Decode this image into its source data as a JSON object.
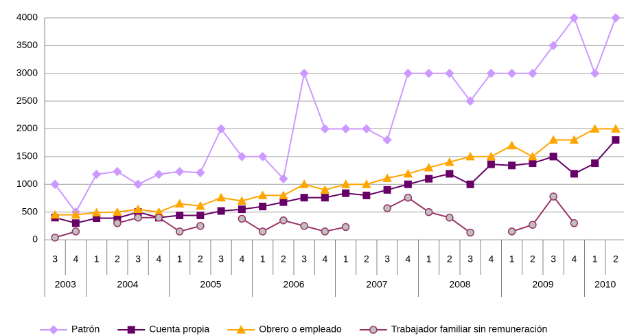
{
  "chart_data": {
    "type": "line",
    "categories": [
      "3",
      "4",
      "1",
      "2",
      "3",
      "4",
      "1",
      "2",
      "3",
      "4",
      "1",
      "2",
      "3",
      "4",
      "1",
      "2",
      "3",
      "4",
      "1",
      "2",
      "3",
      "4",
      "1",
      "2",
      "3",
      "4",
      "1",
      "2"
    ],
    "years": [
      {
        "label": "2003",
        "count": 2
      },
      {
        "label": "2004",
        "count": 4
      },
      {
        "label": "2005",
        "count": 4
      },
      {
        "label": "2006",
        "count": 4
      },
      {
        "label": "2007",
        "count": 4
      },
      {
        "label": "2008",
        "count": 4
      },
      {
        "label": "2009",
        "count": 4
      },
      {
        "label": "2010",
        "count": 2
      }
    ],
    "ylim": [
      0,
      4000
    ],
    "yticks": [
      0,
      500,
      1000,
      1500,
      2000,
      2500,
      3000,
      3500,
      4000
    ],
    "grid": true,
    "legend": "bottom",
    "series": [
      {
        "name": "Patrón",
        "color": "#cc99ff",
        "marker": "diamond",
        "values": [
          1000,
          500,
          1180,
          1230,
          1000,
          1180,
          1230,
          1210,
          2000,
          1500,
          1500,
          1100,
          3000,
          2000,
          2000,
          2000,
          1800,
          3000,
          3000,
          3000,
          2500,
          3000,
          3000,
          3000,
          3500,
          4000,
          3000,
          4000
        ]
      },
      {
        "name": "Cuenta propia",
        "color": "#660066",
        "marker": "square",
        "values": [
          400,
          300,
          390,
          390,
          500,
          400,
          440,
          440,
          520,
          550,
          600,
          680,
          760,
          760,
          840,
          800,
          900,
          1000,
          1100,
          1190,
          1000,
          1360,
          1340,
          1380,
          1500,
          1190,
          1380,
          1800
        ]
      },
      {
        "name": "Obrero o empleado",
        "color": "#ffa500",
        "marker": "triangle",
        "values": [
          450,
          450,
          490,
          500,
          550,
          500,
          650,
          610,
          760,
          700,
          800,
          800,
          1000,
          900,
          1000,
          1000,
          1110,
          1190,
          1300,
          1400,
          1500,
          1500,
          1700,
          1500,
          1800,
          1800,
          2000,
          2000
        ]
      },
      {
        "name": "Trabajador familiar sin remuneración",
        "color": "#993366",
        "marker": "circle",
        "values": [
          40,
          150,
          null,
          300,
          400,
          400,
          150,
          250,
          null,
          380,
          150,
          350,
          250,
          150,
          230,
          null,
          570,
          760,
          500,
          400,
          130,
          null,
          150,
          270,
          780,
          300,
          null,
          null
        ]
      }
    ]
  }
}
